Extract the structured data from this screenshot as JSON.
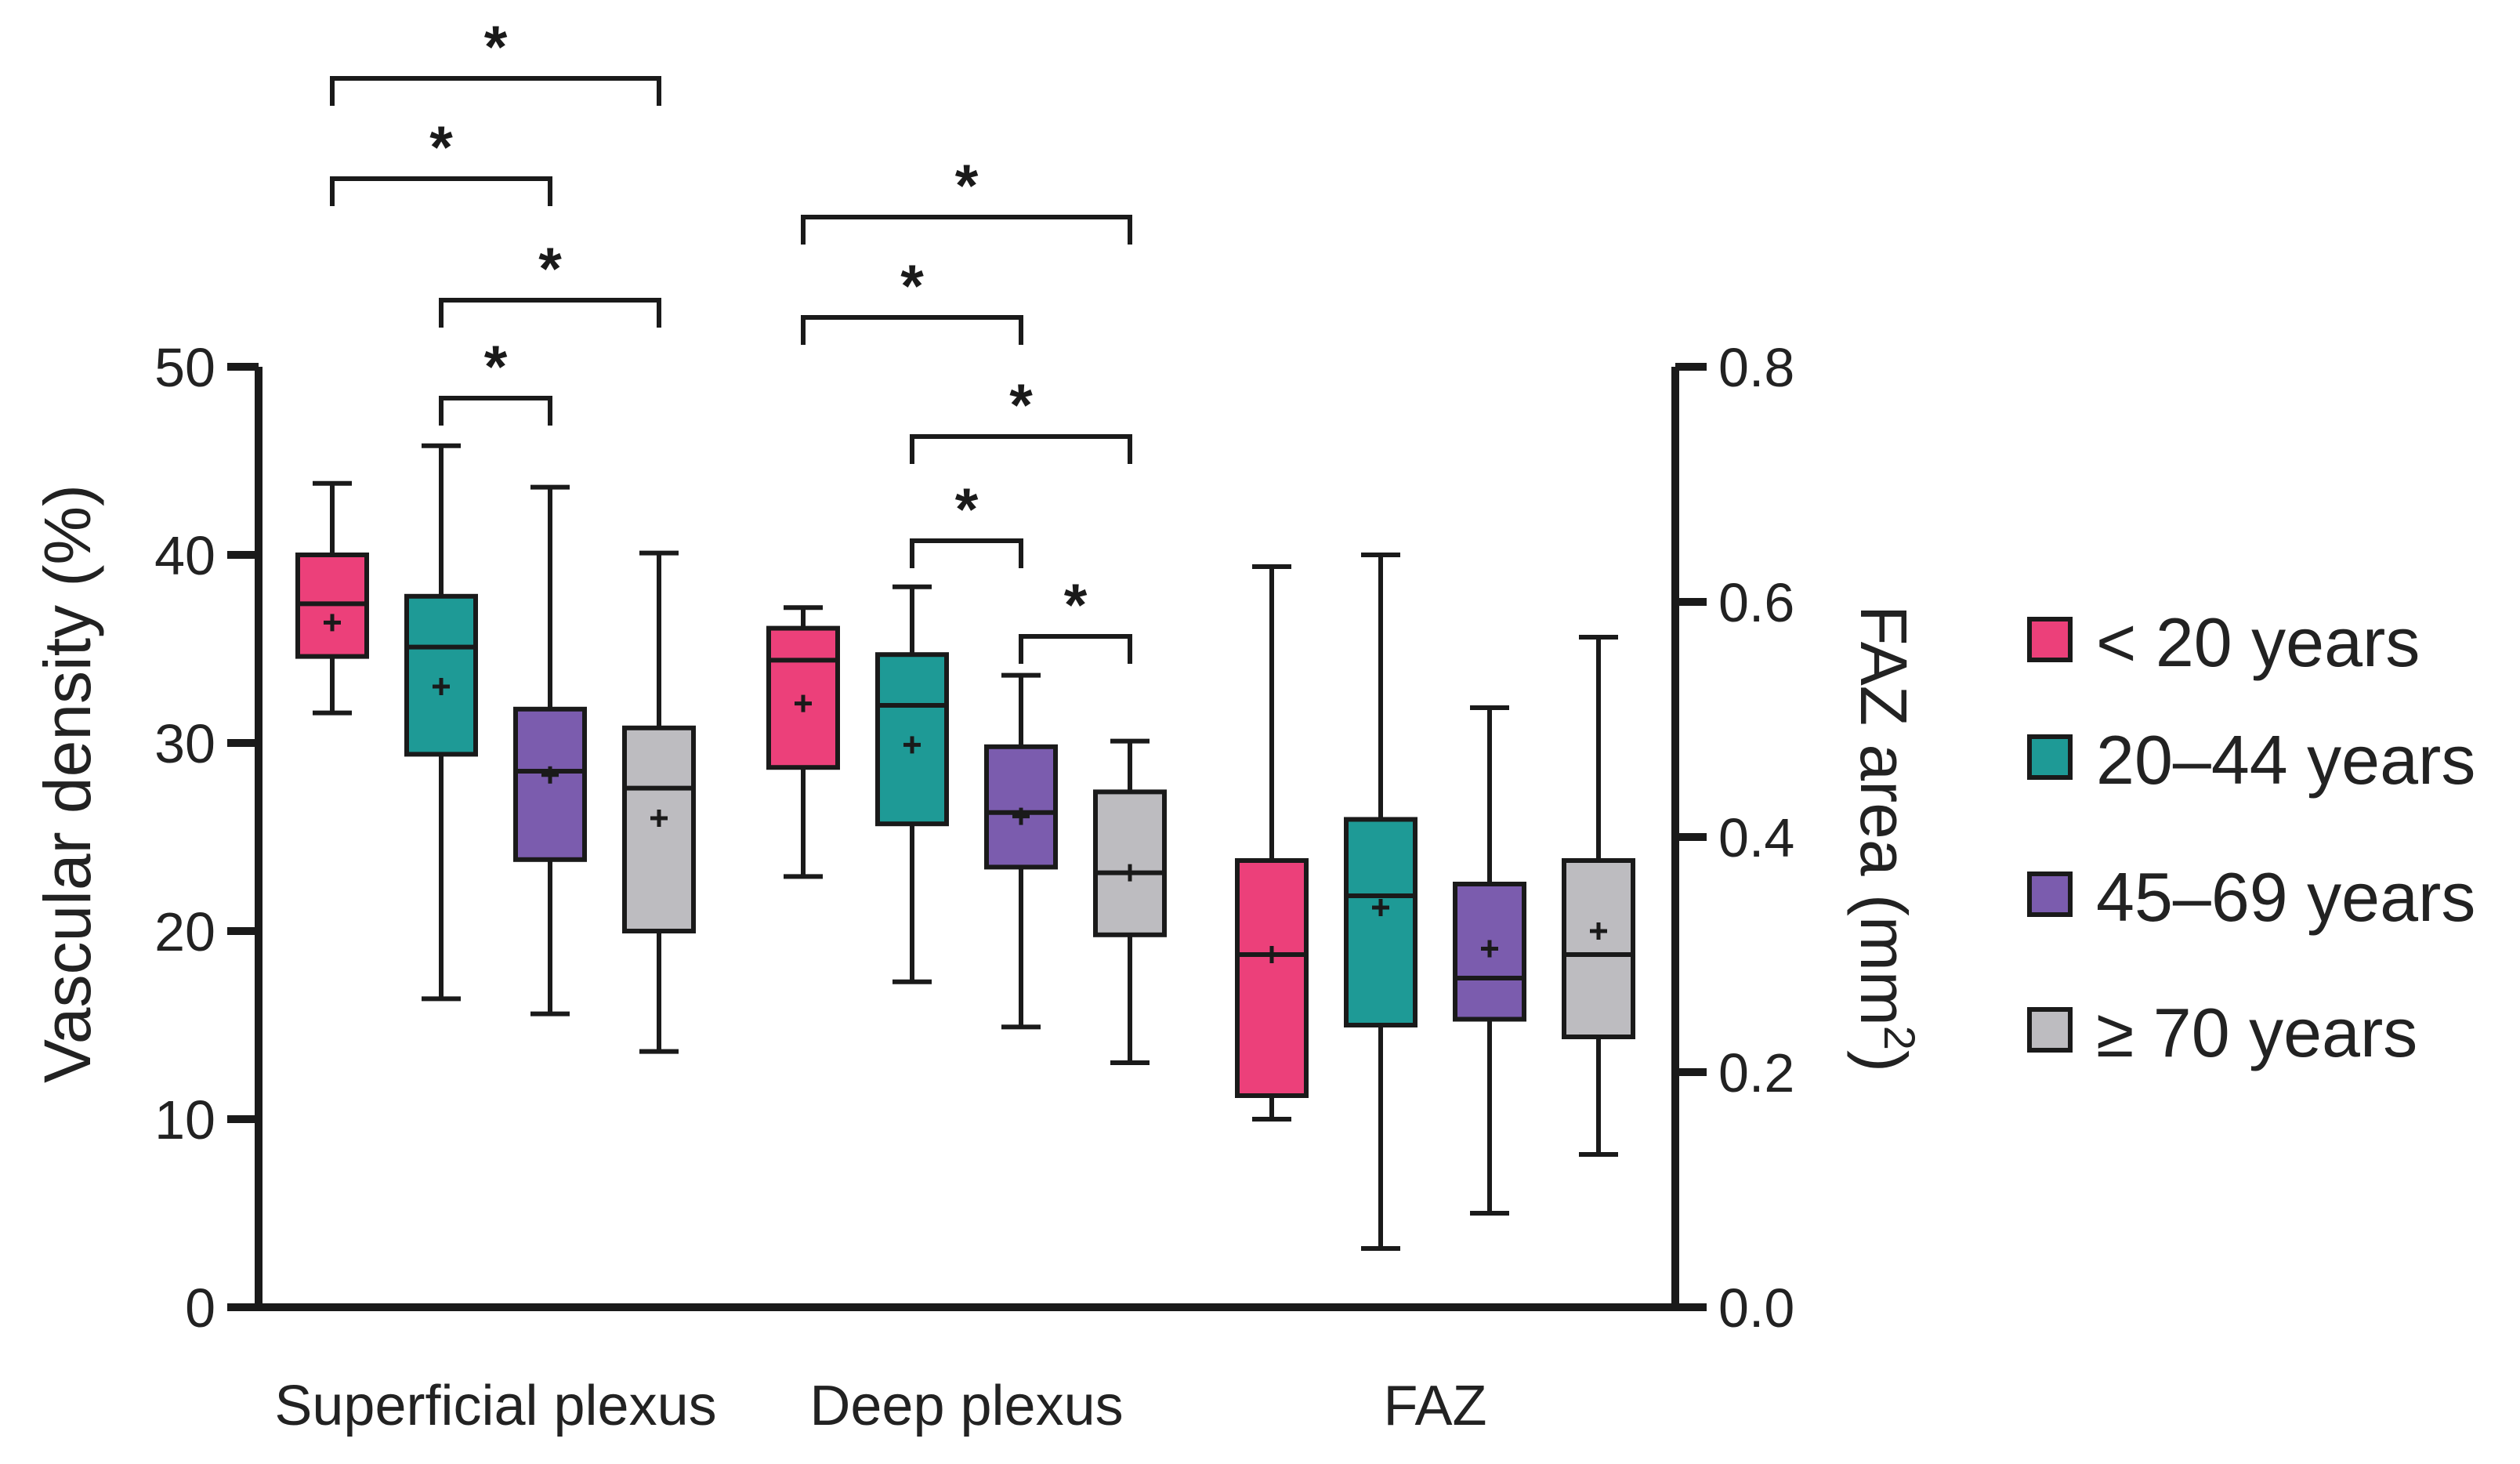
{
  "chart_data": {
    "type": "box",
    "title": "",
    "left_axis": {
      "label": "Vascular density (%)",
      "ylim": [
        0,
        50
      ],
      "ticks": [
        "0",
        "10",
        "20",
        "30",
        "40",
        "50"
      ]
    },
    "right_axis": {
      "label_main": "FAZ area (mm",
      "label_sup": "2",
      "label_end": ")",
      "ylim": [
        0.0,
        0.8
      ],
      "ticks": [
        "0.0",
        "0.2",
        "0.4",
        "0.6",
        "0.8"
      ]
    },
    "groups": [
      {
        "name": "Superficial plexus",
        "axis": "left"
      },
      {
        "name": "Deep plexus",
        "axis": "left"
      },
      {
        "name": "FAZ",
        "axis": "right"
      }
    ],
    "legend": {
      "position": "right",
      "entries": [
        {
          "label": "< 20 years",
          "color": "#EC407A"
        },
        {
          "label": "20–44 years",
          "color": "#1E9A96"
        },
        {
          "label": "45–69 years",
          "color": "#7B5CAE"
        },
        {
          "label": "≥ 70 years",
          "color": "#BDBCC0"
        }
      ]
    },
    "series": [
      {
        "name": "< 20 years",
        "boxes": [
          {
            "min": 31.6,
            "q1": 34.6,
            "median": 37.4,
            "q3": 40.0,
            "max": 43.8,
            "mean": 36.4
          },
          {
            "min": 22.9,
            "q1": 28.7,
            "median": 34.4,
            "q3": 36.1,
            "max": 37.2,
            "mean": 32.1
          },
          {
            "min": 0.16,
            "q1": 0.18,
            "median": 0.3,
            "q3": 0.38,
            "max": 0.63,
            "mean": 0.3
          }
        ]
      },
      {
        "name": "20–44 years",
        "boxes": [
          {
            "min": 16.4,
            "q1": 29.4,
            "median": 35.1,
            "q3": 37.8,
            "max": 45.8,
            "mean": 33.0
          },
          {
            "min": 17.3,
            "q1": 25.7,
            "median": 32.0,
            "q3": 34.7,
            "max": 38.3,
            "mean": 29.9
          },
          {
            "min": 0.05,
            "q1": 0.24,
            "median": 0.35,
            "q3": 0.415,
            "max": 0.64,
            "mean": 0.34
          }
        ]
      },
      {
        "name": "45–69 years",
        "boxes": [
          {
            "min": 15.6,
            "q1": 23.8,
            "median": 28.5,
            "q3": 31.8,
            "max": 43.6,
            "mean": 28.3
          },
          {
            "min": 14.9,
            "q1": 23.4,
            "median": 26.3,
            "q3": 29.8,
            "max": 33.6,
            "mean": 26.1
          },
          {
            "min": 0.08,
            "q1": 0.245,
            "median": 0.28,
            "q3": 0.36,
            "max": 0.51,
            "mean": 0.305
          }
        ]
      },
      {
        "name": "≥ 70 years",
        "boxes": [
          {
            "min": 13.6,
            "q1": 20.0,
            "median": 27.6,
            "q3": 30.8,
            "max": 40.1,
            "mean": 26.0
          },
          {
            "min": 13.0,
            "q1": 19.8,
            "median": 23.1,
            "q3": 27.4,
            "max": 30.1,
            "mean": 23.1
          },
          {
            "min": 0.13,
            "q1": 0.23,
            "median": 0.3,
            "q3": 0.38,
            "max": 0.57,
            "mean": 0.32
          }
        ]
      }
    ],
    "significance": {
      "marker": "*",
      "comparisons": [
        {
          "group": 0,
          "from": 0,
          "to": 3
        },
        {
          "group": 0,
          "from": 0,
          "to": 2
        },
        {
          "group": 0,
          "from": 1,
          "to": 3
        },
        {
          "group": 0,
          "from": 1,
          "to": 2
        },
        {
          "group": 1,
          "from": 0,
          "to": 3
        },
        {
          "group": 1,
          "from": 0,
          "to": 2
        },
        {
          "group": 1,
          "from": 1,
          "to": 3
        },
        {
          "group": 1,
          "from": 1,
          "to": 2
        },
        {
          "group": 1,
          "from": 2,
          "to": 3
        }
      ]
    }
  }
}
